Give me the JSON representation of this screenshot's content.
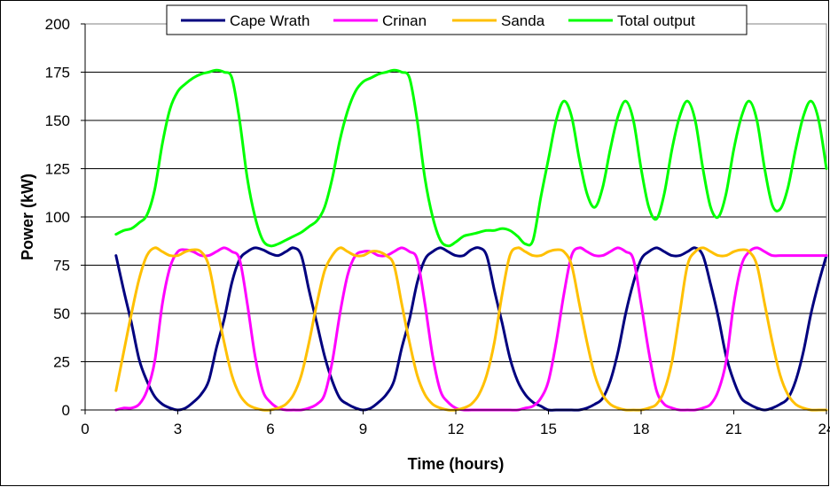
{
  "chart_data": {
    "type": "line",
    "xlabel": "Time (hours)",
    "ylabel": "Power (kW)",
    "xlim": [
      0,
      24
    ],
    "ylim": [
      0,
      200
    ],
    "xticks": [
      "0",
      "3",
      "6",
      "9",
      "12",
      "15",
      "18",
      "21",
      "24"
    ],
    "yticks": [
      "0",
      "25",
      "50",
      "75",
      "100",
      "125",
      "150",
      "175",
      "200"
    ],
    "grid": "horizontal",
    "legend": "top",
    "series": [
      {
        "name": "Cape Wrath",
        "color": "#00007f",
        "x": [
          1.0,
          1.25,
          1.5,
          1.75,
          2.0,
          2.25,
          2.5,
          2.75,
          3.0,
          3.25,
          3.5,
          3.75,
          4.0,
          4.25,
          4.5,
          4.75,
          5.0,
          5.25,
          5.5,
          5.75,
          6.0,
          6.25,
          6.5,
          6.75,
          7.0,
          7.25,
          7.5,
          7.75,
          8.0,
          8.25,
          8.5,
          8.75,
          9.0,
          9.25,
          9.5,
          9.75,
          10.0,
          10.25,
          10.5,
          10.75,
          11.0,
          11.25,
          11.5,
          11.75,
          12.0,
          12.25,
          12.5,
          12.75,
          13.0,
          13.25,
          13.5,
          13.75,
          14.0,
          14.25,
          14.5,
          14.75,
          15.0,
          15.25,
          15.5,
          15.75,
          16.0,
          16.25,
          16.5,
          16.75,
          17.0,
          17.25,
          17.5,
          17.75,
          18.0,
          18.25,
          18.5,
          18.75,
          19.0,
          19.25,
          19.5,
          19.75,
          20.0,
          20.25,
          20.5,
          20.75,
          21.0,
          21.25,
          21.5,
          21.75,
          22.0,
          22.25,
          22.5,
          22.75,
          23.0,
          23.25,
          23.5,
          23.75,
          24.0
        ],
        "y": [
          80,
          62,
          45,
          26,
          15,
          7,
          3,
          1,
          0,
          1,
          4,
          8,
          15,
          32,
          47,
          66,
          78,
          82,
          84,
          83,
          81,
          80,
          82,
          84,
          80,
          62,
          45,
          28,
          15,
          6,
          3,
          1,
          0,
          1,
          4,
          8,
          15,
          32,
          47,
          66,
          78,
          82,
          84,
          82,
          80,
          80,
          83,
          84,
          80,
          62,
          45,
          27,
          15,
          8,
          4,
          2,
          0,
          0,
          0,
          0,
          0,
          1,
          3,
          6,
          15,
          30,
          50,
          66,
          78,
          82,
          84,
          82,
          80,
          80,
          82,
          84,
          80,
          65,
          48,
          28,
          15,
          6,
          3,
          1,
          0,
          1,
          3,
          6,
          15,
          30,
          50,
          66,
          80
        ]
      },
      {
        "name": "Crinan",
        "color": "#ff00ff",
        "x": [
          1.0,
          1.25,
          1.5,
          1.75,
          2.0,
          2.25,
          2.5,
          2.75,
          3.0,
          3.25,
          3.5,
          3.75,
          4.0,
          4.25,
          4.5,
          4.75,
          5.0,
          5.25,
          5.5,
          5.75,
          6.0,
          6.25,
          6.5,
          6.75,
          7.0,
          7.25,
          7.5,
          7.75,
          8.0,
          8.25,
          8.5,
          8.75,
          9.0,
          9.25,
          9.5,
          9.75,
          10.0,
          10.25,
          10.5,
          10.75,
          11.0,
          11.25,
          11.5,
          11.75,
          12.0,
          12.25,
          12.5,
          12.75,
          13.0,
          13.25,
          13.5,
          13.75,
          14.0,
          14.25,
          14.5,
          14.75,
          15.0,
          15.25,
          15.5,
          15.75,
          16.0,
          16.25,
          16.5,
          16.75,
          17.0,
          17.25,
          17.5,
          17.75,
          18.0,
          18.25,
          18.5,
          18.75,
          19.0,
          19.25,
          19.5,
          19.75,
          20.0,
          20.25,
          20.5,
          20.75,
          21.0,
          21.25,
          21.5,
          21.75,
          22.0,
          22.25,
          22.5,
          22.75,
          23.0,
          23.25,
          23.5,
          23.75,
          24.0
        ],
        "y": [
          0,
          1,
          1,
          3,
          10,
          25,
          55,
          74,
          82,
          83,
          82,
          80,
          80,
          82,
          84,
          82,
          78,
          55,
          28,
          10,
          4,
          1,
          0,
          0,
          0,
          1,
          3,
          8,
          25,
          50,
          70,
          80,
          82,
          82,
          80,
          80,
          82,
          84,
          82,
          78,
          55,
          28,
          10,
          4,
          1,
          0,
          0,
          0,
          0,
          0,
          0,
          0,
          0,
          1,
          2,
          6,
          15,
          35,
          60,
          80,
          84,
          82,
          80,
          80,
          82,
          84,
          82,
          78,
          55,
          30,
          10,
          3,
          1,
          0,
          0,
          0,
          1,
          3,
          10,
          25,
          55,
          75,
          82,
          84,
          82,
          80,
          80,
          80,
          80,
          80,
          80,
          80,
          80
        ]
      },
      {
        "name": "Sanda",
        "color": "#ffc000",
        "x": [
          1.0,
          1.25,
          1.5,
          1.75,
          2.0,
          2.25,
          2.5,
          2.75,
          3.0,
          3.25,
          3.5,
          3.75,
          4.0,
          4.25,
          4.5,
          4.75,
          5.0,
          5.25,
          5.5,
          5.75,
          6.0,
          6.25,
          6.5,
          6.75,
          7.0,
          7.25,
          7.5,
          7.75,
          8.0,
          8.25,
          8.5,
          8.75,
          9.0,
          9.25,
          9.5,
          9.75,
          10.0,
          10.25,
          10.5,
          10.75,
          11.0,
          11.25,
          11.5,
          11.75,
          12.0,
          12.25,
          12.5,
          12.75,
          13.0,
          13.25,
          13.5,
          13.75,
          14.0,
          14.25,
          14.5,
          14.75,
          15.0,
          15.25,
          15.5,
          15.75,
          16.0,
          16.25,
          16.5,
          16.75,
          17.0,
          17.25,
          17.5,
          17.75,
          18.0,
          18.25,
          18.5,
          18.75,
          19.0,
          19.25,
          19.5,
          19.75,
          20.0,
          20.25,
          20.5,
          20.75,
          21.0,
          21.25,
          21.5,
          21.75,
          22.0,
          22.25,
          22.5,
          22.75,
          23.0,
          23.25,
          23.5,
          23.75,
          24.0
        ],
        "y": [
          10,
          30,
          50,
          68,
          80,
          84,
          82,
          80,
          80,
          82,
          83,
          82,
          75,
          55,
          35,
          18,
          8,
          3,
          1,
          0,
          0,
          1,
          3,
          8,
          18,
          35,
          55,
          72,
          80,
          84,
          82,
          80,
          80,
          82,
          82,
          80,
          75,
          55,
          35,
          18,
          8,
          3,
          1,
          0,
          0,
          1,
          3,
          8,
          18,
          35,
          60,
          80,
          84,
          82,
          80,
          80,
          82,
          83,
          82,
          75,
          55,
          35,
          18,
          8,
          3,
          1,
          0,
          0,
          0,
          1,
          3,
          10,
          25,
          50,
          75,
          82,
          84,
          82,
          80,
          80,
          82,
          83,
          82,
          75,
          55,
          35,
          18,
          8,
          3,
          1,
          0,
          0,
          0
        ]
      },
      {
        "name": "Total output",
        "color": "#00ff00",
        "x": [
          1.0,
          1.25,
          1.5,
          1.75,
          2.0,
          2.25,
          2.5,
          2.75,
          3.0,
          3.25,
          3.5,
          3.75,
          4.0,
          4.25,
          4.5,
          4.75,
          5.0,
          5.25,
          5.5,
          5.75,
          6.0,
          6.25,
          6.5,
          6.75,
          7.0,
          7.25,
          7.5,
          7.75,
          8.0,
          8.25,
          8.5,
          8.75,
          9.0,
          9.25,
          9.5,
          9.75,
          10.0,
          10.25,
          10.5,
          10.75,
          11.0,
          11.25,
          11.5,
          11.75,
          12.0,
          12.25,
          12.5,
          12.75,
          13.0,
          13.25,
          13.5,
          13.75,
          14.0,
          14.25,
          14.5,
          14.75,
          15.0,
          15.25,
          15.5,
          15.75,
          16.0,
          16.25,
          16.5,
          16.75,
          17.0,
          17.25,
          17.5,
          17.75,
          18.0,
          18.25,
          18.5,
          18.75,
          19.0,
          19.25,
          19.5,
          19.75,
          20.0,
          20.25,
          20.5,
          20.75,
          21.0,
          21.25,
          21.5,
          21.75,
          22.0,
          22.25,
          22.5,
          22.75,
          23.0,
          23.25,
          23.5,
          23.75,
          24.0
        ],
        "y": [
          91,
          93,
          94,
          97,
          101,
          114,
          138,
          156,
          165,
          169,
          172,
          174,
          175,
          176,
          175,
          172,
          150,
          120,
          100,
          88,
          85,
          86,
          88,
          90,
          92,
          95,
          98,
          105,
          120,
          140,
          155,
          165,
          170,
          172,
          174,
          175,
          176,
          175,
          172,
          150,
          120,
          100,
          88,
          85,
          87,
          90,
          91,
          92,
          93,
          93,
          94,
          93,
          90,
          86,
          88,
          110,
          130,
          150,
          160,
          152,
          130,
          112,
          105,
          115,
          135,
          152,
          160,
          150,
          125,
          105,
          99,
          112,
          135,
          152,
          160,
          150,
          125,
          105,
          100,
          112,
          135,
          152,
          160,
          150,
          125,
          106,
          104,
          115,
          135,
          152,
          160,
          150,
          125
        ]
      }
    ]
  }
}
